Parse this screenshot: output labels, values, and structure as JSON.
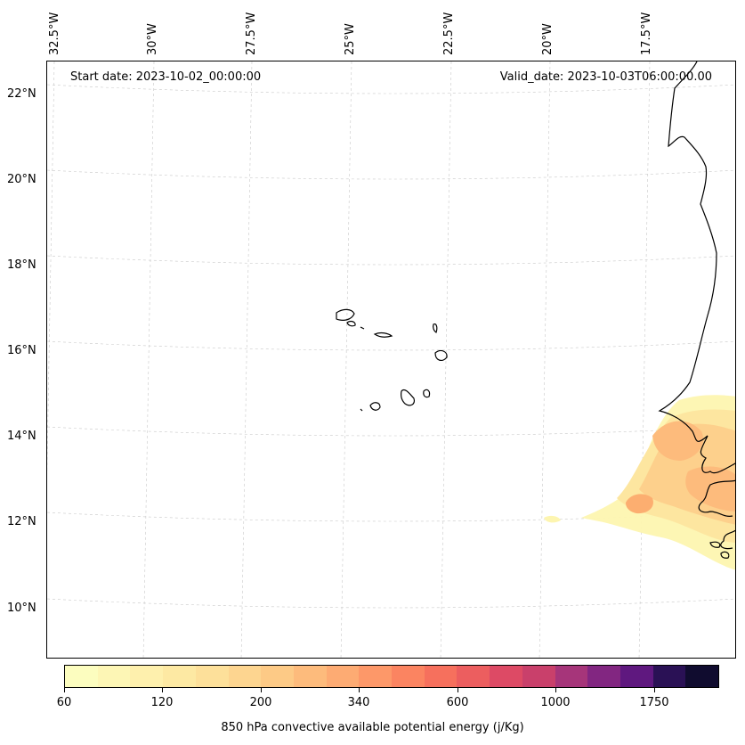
{
  "map": {
    "start_date_label": "Start date: 2023-10-02_00:00:00",
    "valid_date_label": "Valid_date: 2023-10-03T06:00:00.00",
    "longitude_labels": [
      "32.5°W",
      "30°W",
      "27.5°W",
      "25°W",
      "22.5°W",
      "20°W",
      "17.5°W"
    ],
    "latitude_labels": [
      "22°N",
      "20°N",
      "18°N",
      "16°N",
      "14°N",
      "12°N",
      "10°N"
    ],
    "coastline_color": "#000000",
    "gridline_color": "#c8c8c8"
  },
  "colorbar": {
    "title": "850 hPa convective available potential energy (j/Kg)",
    "tick_labels": [
      "60",
      "120",
      "200",
      "340",
      "600",
      "1000",
      "1750"
    ],
    "colors": [
      "#fcfdbf",
      "#fdf6b5",
      "#fef0ad",
      "#fde9a3",
      "#fde09a",
      "#fdd590",
      "#fdca86",
      "#fdbb7c",
      "#fdab73",
      "#fd9869",
      "#fb8461",
      "#f6705d",
      "#ec5e5f",
      "#dd4a65",
      "#c9406b",
      "#a6357a",
      "#822681",
      "#5f187f",
      "#2a1155",
      "#100c2f"
    ]
  }
}
